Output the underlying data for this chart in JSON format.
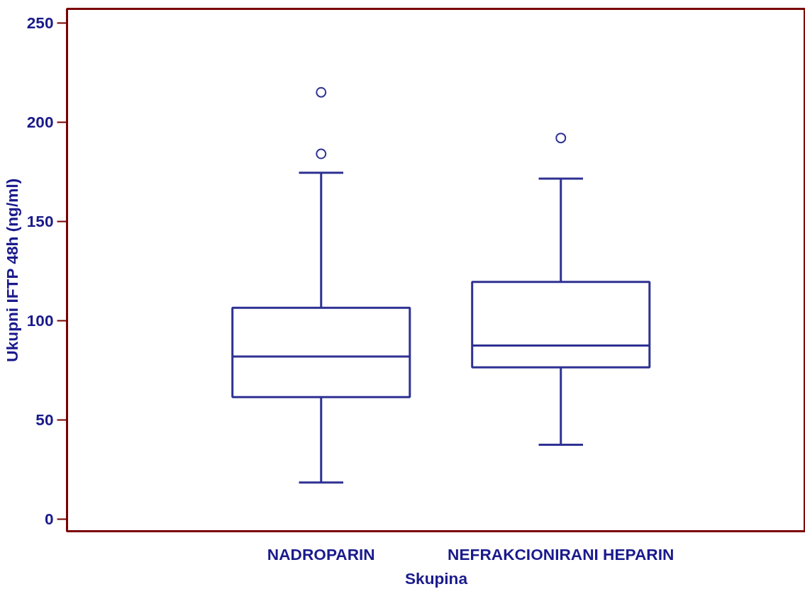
{
  "chart_data": {
    "type": "box",
    "xlabel": "Skupina",
    "ylabel": "Ukupni IFTP 48h (ng/ml)",
    "categories": [
      "NADROPARIN",
      "NEFRAKCIONIRANI HEPARIN"
    ],
    "series": [
      {
        "color": "#2e3192",
        "boxes": [
          {
            "low": 18.5,
            "q1": 61.5,
            "median": 82,
            "q3": 106.5,
            "high": 174.5,
            "outliers": [
              215,
              184
            ]
          },
          {
            "low": 37.5,
            "q1": 76.5,
            "median": 87.5,
            "q3": 119.5,
            "high": 171.5,
            "outliers": [
              192
            ]
          }
        ]
      }
    ],
    "ylim": [
      -6,
      257
    ],
    "yticks": [
      0,
      50,
      100,
      150,
      200,
      250
    ],
    "grid": false
  }
}
